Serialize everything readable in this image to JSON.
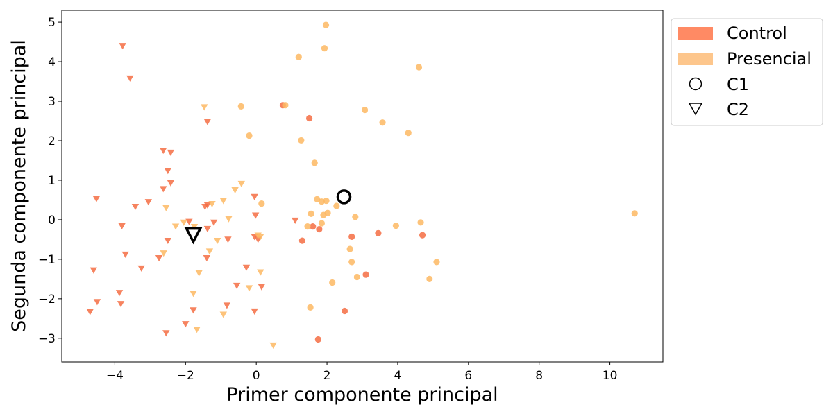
{
  "chart_data": {
    "type": "scatter",
    "xlabel": "Primer componente principal",
    "ylabel": "Segunda componente principal",
    "xlim": [
      -5.5,
      11.5
    ],
    "ylim": [
      -3.6,
      5.3
    ],
    "xticks": [
      {
        "v": -4,
        "label": "−4"
      },
      {
        "v": -2,
        "label": "−2"
      },
      {
        "v": 0,
        "label": "0"
      },
      {
        "v": 2,
        "label": "2"
      },
      {
        "v": 4,
        "label": "4"
      },
      {
        "v": 6,
        "label": "6"
      },
      {
        "v": 8,
        "label": "8"
      },
      {
        "v": 10,
        "label": "10"
      }
    ],
    "yticks": [
      {
        "v": -3,
        "label": "−3"
      },
      {
        "v": -2,
        "label": "−2"
      },
      {
        "v": -1,
        "label": "−1"
      },
      {
        "v": 0,
        "label": "0"
      },
      {
        "v": 1,
        "label": "1"
      },
      {
        "v": 2,
        "label": "2"
      },
      {
        "v": 3,
        "label": "3"
      },
      {
        "v": 4,
        "label": "4"
      },
      {
        "v": 5,
        "label": "5"
      }
    ],
    "grid": false,
    "legend_placement": "outside-top-right",
    "colors": {
      "Control": "#f46d43",
      "Presencial": "#fdb863"
    },
    "legend": [
      {
        "kind": "patch",
        "label": "Control",
        "color": "#ff8a64"
      },
      {
        "kind": "patch",
        "label": "Presencial",
        "color": "#fdc68c"
      },
      {
        "kind": "circle",
        "label": "C1"
      },
      {
        "kind": "triangle",
        "label": "C2"
      }
    ],
    "series": [
      {
        "name": "Control",
        "cluster": "C1",
        "marker": "circle",
        "color": "#f46d43",
        "points": [
          [
            0.75,
            2.9
          ],
          [
            1.5,
            2.57
          ],
          [
            1.6,
            -0.17
          ],
          [
            1.78,
            -0.24
          ],
          [
            1.3,
            -0.53
          ],
          [
            2.7,
            -0.43
          ],
          [
            3.45,
            -0.34
          ],
          [
            4.7,
            -0.39
          ],
          [
            3.1,
            -1.39
          ],
          [
            2.5,
            -2.31
          ],
          [
            1.75,
            -3.03
          ]
        ]
      },
      {
        "name": "Presencial",
        "cluster": "C1",
        "marker": "circle",
        "color": "#fdb863",
        "points": [
          [
            1.97,
            4.93
          ],
          [
            1.93,
            4.34
          ],
          [
            1.2,
            4.12
          ],
          [
            4.6,
            3.86
          ],
          [
            0.82,
            2.9
          ],
          [
            -0.43,
            2.87
          ],
          [
            3.07,
            2.78
          ],
          [
            3.57,
            2.46
          ],
          [
            4.3,
            2.2
          ],
          [
            -0.2,
            2.13
          ],
          [
            1.27,
            2.01
          ],
          [
            1.65,
            1.44
          ],
          [
            1.72,
            0.52
          ],
          [
            1.85,
            0.46
          ],
          [
            1.98,
            0.48
          ],
          [
            2.27,
            0.35
          ],
          [
            1.55,
            0.15
          ],
          [
            1.9,
            0.12
          ],
          [
            2.02,
            0.17
          ],
          [
            2.8,
            0.07
          ],
          [
            1.85,
            -0.09
          ],
          [
            1.45,
            -0.17
          ],
          [
            3.95,
            -0.15
          ],
          [
            4.65,
            -0.07
          ],
          [
            0.15,
            0.41
          ],
          [
            2.65,
            -0.74
          ],
          [
            2.7,
            -1.07
          ],
          [
            2.85,
            -1.45
          ],
          [
            5.1,
            -1.07
          ],
          [
            4.9,
            -1.5
          ],
          [
            2.15,
            -1.59
          ],
          [
            1.53,
            -2.22
          ],
          [
            10.7,
            0.16
          ]
        ]
      },
      {
        "name": "Control",
        "cluster": "C2",
        "marker": "triangle",
        "color": "#f46d43",
        "points": [
          [
            -3.78,
            4.4
          ],
          [
            -3.57,
            3.58
          ],
          [
            -1.38,
            2.48
          ],
          [
            -2.63,
            1.75
          ],
          [
            -2.42,
            1.7
          ],
          [
            -2.5,
            1.24
          ],
          [
            -2.42,
            0.93
          ],
          [
            -2.63,
            0.78
          ],
          [
            -4.52,
            0.53
          ],
          [
            -3.05,
            0.45
          ],
          [
            -3.42,
            0.33
          ],
          [
            -1.45,
            0.33
          ],
          [
            -1.38,
            0.37
          ],
          [
            -3.8,
            -0.16
          ],
          [
            -1.38,
            -0.23
          ],
          [
            -1.2,
            -0.07
          ],
          [
            -1.9,
            -0.05
          ],
          [
            -0.05,
            0.58
          ],
          [
            -0.02,
            0.11
          ],
          [
            -0.05,
            -0.43
          ],
          [
            0.05,
            -0.5
          ],
          [
            1.1,
            -0.02
          ],
          [
            -0.8,
            -0.5
          ],
          [
            -2.5,
            -0.53
          ],
          [
            -3.7,
            -0.88
          ],
          [
            -2.75,
            -0.97
          ],
          [
            -1.4,
            -0.97
          ],
          [
            -3.25,
            -1.23
          ],
          [
            -4.6,
            -1.28
          ],
          [
            -0.28,
            -1.21
          ],
          [
            -0.55,
            -1.67
          ],
          [
            0.15,
            -1.7
          ],
          [
            -3.87,
            -1.85
          ],
          [
            -4.5,
            -2.08
          ],
          [
            -3.83,
            -2.13
          ],
          [
            -1.78,
            -2.29
          ],
          [
            -0.83,
            -2.17
          ],
          [
            -0.05,
            -2.32
          ],
          [
            -4.7,
            -2.33
          ],
          [
            -2.0,
            -2.64
          ],
          [
            -2.55,
            -2.87
          ]
        ]
      },
      {
        "name": "Presencial",
        "cluster": "C2",
        "marker": "triangle",
        "color": "#fdb863",
        "points": [
          [
            -1.47,
            2.85
          ],
          [
            -0.42,
            0.91
          ],
          [
            -0.6,
            0.75
          ],
          [
            -0.93,
            0.48
          ],
          [
            -1.25,
            0.4
          ],
          [
            -2.55,
            0.3
          ],
          [
            -0.78,
            0.02
          ],
          [
            -2.28,
            -0.17
          ],
          [
            -2.05,
            -0.07
          ],
          [
            -1.75,
            -0.18
          ],
          [
            0.05,
            -0.4
          ],
          [
            0.12,
            -0.43
          ],
          [
            -1.1,
            -0.53
          ],
          [
            -2.62,
            -0.85
          ],
          [
            -1.32,
            -0.8
          ],
          [
            -1.62,
            -1.35
          ],
          [
            0.12,
            -1.33
          ],
          [
            -0.2,
            -1.73
          ],
          [
            -1.78,
            -1.87
          ],
          [
            -0.93,
            -2.4
          ],
          [
            -1.68,
            -2.78
          ],
          [
            0.48,
            -3.18
          ]
        ]
      }
    ],
    "centroids": [
      {
        "label": "C1",
        "marker": "circle",
        "x": 2.48,
        "y": 0.58
      },
      {
        "label": "C2",
        "marker": "triangle",
        "x": -1.78,
        "y": -0.38
      }
    ]
  }
}
